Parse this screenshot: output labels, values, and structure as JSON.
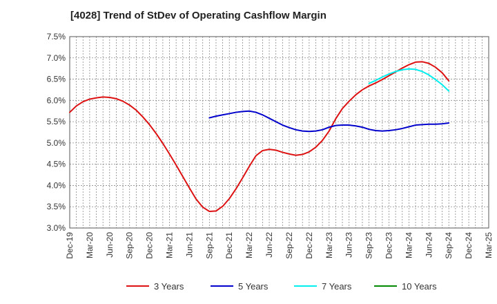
{
  "chart_data": {
    "type": "line",
    "title": "[4028]  Trend of StDev of Operating Cashflow Margin",
    "xlabel": "",
    "ylabel": "",
    "x_ticks": [
      "Dec-19",
      "Mar-20",
      "Jun-20",
      "Sep-20",
      "Dec-20",
      "Mar-21",
      "Jun-21",
      "Sep-21",
      "Dec-21",
      "Mar-22",
      "Jun-22",
      "Sep-22",
      "Dec-22",
      "Mar-23",
      "Jun-23",
      "Sep-23",
      "Dec-23",
      "Mar-24",
      "Jun-24",
      "Sep-24",
      "Dec-24",
      "Mar-25"
    ],
    "y_ticks": [
      "7.5%",
      "7.0%",
      "6.5%",
      "6.0%",
      "5.5%",
      "5.0%",
      "4.5%",
      "4.0%",
      "3.5%",
      "3.0%"
    ],
    "ylim": [
      3.0,
      7.5
    ],
    "grid": true,
    "legend_position": "bottom",
    "series": [
      {
        "name": "3 Years",
        "color": "#dd1111",
        "x": [
          "Dec-19",
          "Jan-20",
          "Feb-20",
          "Mar-20",
          "Apr-20",
          "May-20",
          "Jun-20",
          "Jul-20",
          "Aug-20",
          "Sep-20",
          "Oct-20",
          "Nov-20",
          "Dec-20",
          "Jan-21",
          "Feb-21",
          "Mar-21",
          "Apr-21",
          "May-21",
          "Jun-21",
          "Jul-21",
          "Aug-21",
          "Sep-21",
          "Oct-21",
          "Nov-21",
          "Dec-21",
          "Jan-22",
          "Feb-22",
          "Mar-22",
          "Apr-22",
          "May-22",
          "Jun-22",
          "Jul-22",
          "Aug-22",
          "Sep-22",
          "Oct-22",
          "Nov-22",
          "Dec-22",
          "Jan-23",
          "Feb-23",
          "Mar-23",
          "Apr-23",
          "May-23",
          "Jun-23",
          "Jul-23",
          "Aug-23",
          "Sep-23",
          "Oct-23",
          "Nov-23",
          "Dec-23",
          "Jan-24",
          "Feb-24",
          "Mar-24",
          "Apr-24",
          "May-24",
          "Jun-24",
          "Jul-24",
          "Aug-24",
          "Sep-24"
        ],
        "values": [
          5.72,
          5.87,
          5.97,
          6.03,
          6.06,
          6.08,
          6.07,
          6.04,
          5.98,
          5.89,
          5.77,
          5.61,
          5.43,
          5.22,
          4.99,
          4.74,
          4.48,
          4.21,
          3.94,
          3.68,
          3.49,
          3.39,
          3.4,
          3.51,
          3.69,
          3.92,
          4.18,
          4.45,
          4.7,
          4.82,
          4.85,
          4.83,
          4.78,
          4.74,
          4.71,
          4.73,
          4.79,
          4.9,
          5.06,
          5.28,
          5.57,
          5.81,
          5.98,
          6.13,
          6.25,
          6.34,
          6.41,
          6.49,
          6.58,
          6.67,
          6.76,
          6.84,
          6.9,
          6.91,
          6.87,
          6.78,
          6.65,
          6.46
        ]
      },
      {
        "name": "5 Years",
        "color": "#0000cc",
        "x": [
          "Sep-21",
          "Oct-21",
          "Nov-21",
          "Dec-21",
          "Jan-22",
          "Feb-22",
          "Mar-22",
          "Apr-22",
          "May-22",
          "Jun-22",
          "Jul-22",
          "Aug-22",
          "Sep-22",
          "Oct-22",
          "Nov-22",
          "Dec-22",
          "Jan-23",
          "Feb-23",
          "Mar-23",
          "Apr-23",
          "May-23",
          "Jun-23",
          "Jul-23",
          "Aug-23",
          "Sep-23",
          "Oct-23",
          "Nov-23",
          "Dec-23",
          "Jan-24",
          "Feb-24",
          "Mar-24",
          "Apr-24",
          "May-24",
          "Jun-24",
          "Jul-24",
          "Aug-24",
          "Sep-24"
        ],
        "values": [
          5.59,
          5.63,
          5.66,
          5.69,
          5.72,
          5.74,
          5.75,
          5.72,
          5.66,
          5.58,
          5.5,
          5.42,
          5.36,
          5.31,
          5.28,
          5.27,
          5.28,
          5.31,
          5.37,
          5.41,
          5.42,
          5.42,
          5.4,
          5.37,
          5.32,
          5.29,
          5.28,
          5.29,
          5.31,
          5.34,
          5.38,
          5.42,
          5.43,
          5.44,
          5.44,
          5.45,
          5.47
        ]
      },
      {
        "name": "7 Years",
        "color": "#00eeee",
        "x": [
          "Sep-23",
          "Oct-23",
          "Nov-23",
          "Dec-23",
          "Jan-24",
          "Feb-24",
          "Mar-24",
          "Apr-24",
          "May-24",
          "Jun-24",
          "Jul-24",
          "Aug-24",
          "Sep-24"
        ],
        "values": [
          6.4,
          6.47,
          6.55,
          6.62,
          6.68,
          6.72,
          6.74,
          6.73,
          6.68,
          6.6,
          6.49,
          6.37,
          6.22
        ]
      },
      {
        "name": "10 Years",
        "color": "#008800",
        "x": [],
        "values": []
      }
    ]
  }
}
